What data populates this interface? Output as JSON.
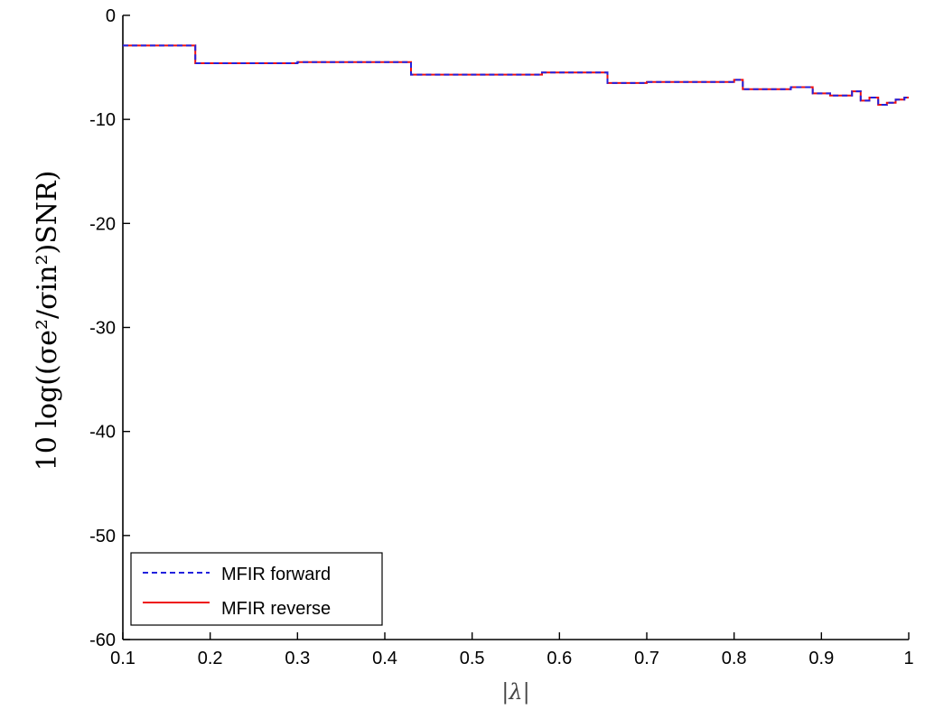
{
  "chart_data": {
    "type": "line",
    "title": "",
    "xlabel": "|λ|",
    "ylabel": "10 log((σe²/σin²)SNR)",
    "xlim": [
      0.1,
      1
    ],
    "ylim": [
      -60,
      0
    ],
    "xticks": [
      "0.1",
      "0.2",
      "0.3",
      "0.4",
      "0.5",
      "0.6",
      "0.7",
      "0.8",
      "0.9",
      "1"
    ],
    "yticks": [
      "0",
      "-10",
      "-20",
      "-30",
      "-40",
      "-50",
      "-60"
    ],
    "grid": false,
    "legend_position": "bottom-left",
    "series": [
      {
        "name": "MFIR forward",
        "color": "#2222dd",
        "style": "dashed",
        "x": [
          0.1,
          0.183,
          0.183,
          0.3,
          0.3,
          0.43,
          0.43,
          0.58,
          0.58,
          0.655,
          0.655,
          0.7,
          0.7,
          0.8,
          0.8,
          0.81,
          0.81,
          0.865,
          0.865,
          0.89,
          0.89,
          0.91,
          0.91,
          0.935,
          0.935,
          0.945,
          0.945,
          0.955,
          0.955,
          0.965,
          0.965,
          0.975,
          0.975,
          0.985,
          0.985,
          0.995,
          0.995,
          1.0
        ],
        "y": [
          -2.9,
          -2.9,
          -4.6,
          -4.6,
          -4.5,
          -4.5,
          -5.7,
          -5.7,
          -5.5,
          -5.5,
          -6.5,
          -6.5,
          -6.4,
          -6.4,
          -6.2,
          -6.2,
          -7.1,
          -7.1,
          -6.9,
          -6.9,
          -7.5,
          -7.5,
          -7.7,
          -7.7,
          -7.3,
          -7.3,
          -8.2,
          -8.2,
          -7.9,
          -7.9,
          -8.6,
          -8.6,
          -8.4,
          -8.4,
          -8.1,
          -8.1,
          -7.9,
          -7.9
        ]
      },
      {
        "name": "MFIR reverse",
        "color": "#ee1111",
        "style": "solid",
        "x": [
          0.1,
          0.183,
          0.183,
          0.3,
          0.3,
          0.43,
          0.43,
          0.58,
          0.58,
          0.655,
          0.655,
          0.7,
          0.7,
          0.8,
          0.8,
          0.81,
          0.81,
          0.865,
          0.865,
          0.89,
          0.89,
          0.91,
          0.91,
          0.935,
          0.935,
          0.945,
          0.945,
          0.955,
          0.955,
          0.965,
          0.965,
          0.975,
          0.975,
          0.985,
          0.985,
          0.995,
          0.995,
          1.0
        ],
        "y": [
          -2.9,
          -2.9,
          -4.6,
          -4.6,
          -4.5,
          -4.5,
          -5.7,
          -5.7,
          -5.5,
          -5.5,
          -6.5,
          -6.5,
          -6.4,
          -6.4,
          -6.2,
          -6.2,
          -7.1,
          -7.1,
          -6.9,
          -6.9,
          -7.5,
          -7.5,
          -7.7,
          -7.7,
          -7.3,
          -7.3,
          -8.2,
          -8.2,
          -7.9,
          -7.9,
          -8.6,
          -8.6,
          -8.4,
          -8.4,
          -8.1,
          -8.1,
          -7.9,
          -7.9
        ]
      }
    ]
  }
}
